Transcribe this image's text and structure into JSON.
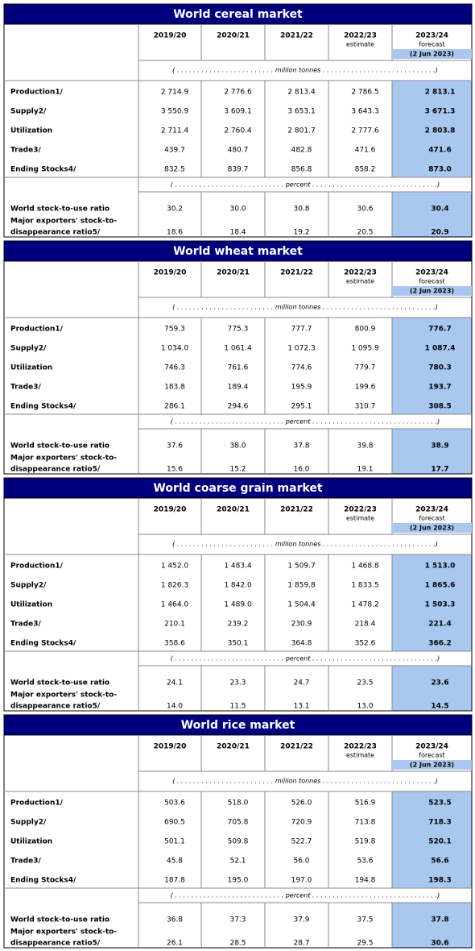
{
  "sections": [
    {
      "title": "World cereal market",
      "columns": [
        {
          "label": "2019/20"
        },
        {
          "label": "2020/21"
        },
        {
          "label": "2021/22"
        },
        {
          "label": "2022/23",
          "note": "estimate"
        },
        {
          "label": "2023/24",
          "note": "forecast",
          "date": "(2 Jun 2023)"
        }
      ],
      "unit_main": "( . . . . . . . . . . . . . . . . . . . . . . . . million tonnes . . . . . . . . . . . . . . . . . . . . . . . . . . . .)",
      "rows": [
        {
          "label": "Production1/",
          "values": [
            "2 714.9",
            "2 776.6",
            "2 813.4",
            "2 786.5",
            "2 813.1"
          ]
        },
        {
          "label": "Supply2/",
          "values": [
            "3 550.9",
            "3 609.1",
            "3 653.1",
            "3 643.3",
            "3 671.3"
          ]
        },
        {
          "label": "Utilization",
          "values": [
            "2 711.4",
            "2 760.4",
            "2 801.7",
            "2 777.6",
            "2 803.8"
          ]
        },
        {
          "label": "Trade3/",
          "values": [
            "439.7",
            "480.7",
            "482.8",
            "471.6",
            "471.6"
          ]
        },
        {
          "label": "Ending Stocks4/",
          "values": [
            "832.5",
            "839.7",
            "856.8",
            "858.2",
            "873.0"
          ]
        }
      ],
      "unit_ratio": "( . . . . . . . . . . . . . . . . . . . . . . . . . . . percent . . . . . . . . . . . . . . . . . . . . . . . . . . . . . . .)",
      "ratio_rows": [
        {
          "label": "World stock-to-use ratio",
          "values": [
            "30.2",
            "30.0",
            "30.8",
            "30.6",
            "30.4"
          ]
        },
        {
          "label": [
            "Major exporters' stock-to-",
            "disappearance ratio5/"
          ],
          "values": [
            "18.6",
            "18.4",
            "19.2",
            "20.5",
            "20.9"
          ]
        }
      ]
    },
    {
      "title": "World wheat market",
      "columns": [
        {
          "label": "2019/20"
        },
        {
          "label": "2020/21"
        },
        {
          "label": "2021/22"
        },
        {
          "label": "2022/23",
          "note": "estimate"
        },
        {
          "label": "2023/24",
          "note": "forecast",
          "date": "(2 Jun 2023)"
        }
      ],
      "unit_main": "( . . . . . . . . . . . . . . . . . . . . . . . . million tonnes . . . . . . . . . . . . . . . . . . . . . . . . . . . .)",
      "rows": [
        {
          "label": "Production1/",
          "values": [
            "759.3",
            "775.3",
            "777.7",
            "800.9",
            "776.7"
          ]
        },
        {
          "label": "Supply2/",
          "values": [
            "1 034.0",
            "1 061.4",
            "1 072.3",
            "1 095.9",
            "1 087.4"
          ]
        },
        {
          "label": "Utilization",
          "values": [
            "746.3",
            "761.6",
            "774.6",
            "779.7",
            "780.3"
          ]
        },
        {
          "label": "Trade3/",
          "values": [
            "183.8",
            "189.4",
            "195.9",
            "199.6",
            "193.7"
          ]
        },
        {
          "label": "Ending Stocks4/",
          "values": [
            "286.1",
            "294.6",
            "295.1",
            "310.7",
            "308.5"
          ]
        }
      ],
      "unit_ratio": "( . . . . . . . . . . . . . . . . . . . . . . . . . . . percent . . . . . . . . . . . . . . . . . . . . . . . . . . . . . . .)",
      "ratio_rows": [
        {
          "label": "World stock-to-use ratio",
          "values": [
            "37.6",
            "38.0",
            "37.8",
            "39.8",
            "38.9"
          ]
        },
        {
          "label": [
            "Major exporters' stock-to-",
            "disappearance ratio5/"
          ],
          "values": [
            "15.6",
            "15.2",
            "16.0",
            "19.1",
            "17.7"
          ]
        }
      ]
    },
    {
      "title": "World coarse grain market",
      "columns": [
        {
          "label": "2019/20"
        },
        {
          "label": "2020/21"
        },
        {
          "label": "2021/22"
        },
        {
          "label": "2022/23",
          "note": "estimate"
        },
        {
          "label": "2023/24",
          "note": "forecast",
          "date": "(2 Jun 2023)"
        }
      ],
      "unit_main": "( . . . . . . . . . . . . . . . . . . . . . . . . million tonnes . . . . . . . . . . . . . . . . . . . . . . . . . . . .)",
      "rows": [
        {
          "label": "Production1/",
          "values": [
            "1 452.0",
            "1 483.4",
            "1 509.7",
            "1 468.8",
            "1 513.0"
          ]
        },
        {
          "label": "Supply2/",
          "values": [
            "1 826.3",
            "1 842.0",
            "1 859.8",
            "1 833.5",
            "1 865.6"
          ]
        },
        {
          "label": "Utilization",
          "values": [
            "1 464.0",
            "1 489.0",
            "1 504.4",
            "1 478.2",
            "1 503.3"
          ]
        },
        {
          "label": "Trade3/",
          "values": [
            "210.1",
            "239.2",
            "230.9",
            "218.4",
            "221.4"
          ]
        },
        {
          "label": "Ending Stocks4/",
          "values": [
            "358.6",
            "350.1",
            "364.8",
            "352.6",
            "366.2"
          ]
        }
      ],
      "unit_ratio": "( . . . . . . . . . . . . . . . . . . . . . . . . . . . percent . . . . . . . . . . . . . . . . . . . . . . . . . . . . . . .)",
      "ratio_rows": [
        {
          "label": "World stock-to-use ratio",
          "values": [
            "24.1",
            "23.3",
            "24.7",
            "23.5",
            "23.6"
          ]
        },
        {
          "label": [
            "Major exporters' stock-to-",
            "disappearance ratio5/"
          ],
          "values": [
            "14.0",
            "11.5",
            "13.1",
            "13.0",
            "14.5"
          ]
        }
      ]
    },
    {
      "title": "World rice market",
      "columns": [
        {
          "label": "2019/20"
        },
        {
          "label": "2020/21"
        },
        {
          "label": "2021/22"
        },
        {
          "label": "2022/23",
          "note": "estimate"
        },
        {
          "label": "2023/24",
          "note": "forecast",
          "date": "(2 Jun 2023)"
        }
      ],
      "unit_main": "( . . . . . . . . . . . . . . . . . . . . . . . . million tonnes . . . . . . . . . . . . . . . . . . . . . . . . . . . .)",
      "rows": [
        {
          "label": "Production1/",
          "values": [
            "503.6",
            "518.0",
            "526.0",
            "516.9",
            "523.5"
          ]
        },
        {
          "label": "Supply2/",
          "values": [
            "690.5",
            "705.8",
            "720.9",
            "713.8",
            "718.3"
          ]
        },
        {
          "label": "Utilization",
          "values": [
            "501.1",
            "509.8",
            "522.7",
            "519.8",
            "520.1"
          ]
        },
        {
          "label": "Trade3/",
          "values": [
            "45.8",
            "52.1",
            "56.0",
            "53.6",
            "56.6"
          ]
        },
        {
          "label": "Ending Stocks4/",
          "values": [
            "187.8",
            "195.0",
            "197.0",
            "194.8",
            "198.3"
          ]
        }
      ],
      "unit_ratio": "( . . . . . . . . . . . . . . . . . . . . . . . . . . . percent . . . . . . . . . . . . . . . . . . . . . . . . . . . . . . .)",
      "ratio_rows": [
        {
          "label": "World stock-to-use ratio",
          "values": [
            "36.8",
            "37.3",
            "37.9",
            "37.5",
            "37.8"
          ]
        },
        {
          "label": [
            "Major exporters' stock-to-",
            "disappearance ratio5/"
          ],
          "values": [
            "26.1",
            "28.5",
            "28.7",
            "29.5",
            "30.6"
          ]
        }
      ]
    }
  ]
}
